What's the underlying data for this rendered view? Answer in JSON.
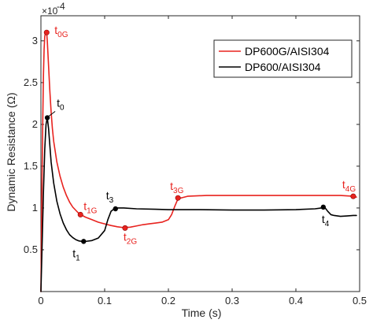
{
  "chart_data": {
    "type": "line",
    "title": "",
    "xlabel": "Time (s)",
    "ylabel": "Dynamic Resistance (Ω)",
    "y_exponent_label": "×10",
    "y_exponent_power": "-4",
    "xlim": [
      0,
      0.5
    ],
    "ylim": [
      0,
      3.3
    ],
    "y_scale_factor": 0.0001,
    "x_ticks": [
      0,
      0.1,
      0.2,
      0.3,
      0.4,
      0.5
    ],
    "x_tick_labels": [
      "0",
      "0.1",
      "0.2",
      "0.3",
      "0.4",
      "0.5"
    ],
    "y_ticks": [
      0.5,
      1,
      1.5,
      2,
      2.5,
      3
    ],
    "y_tick_labels": [
      "0.5",
      "1",
      "1.5",
      "2",
      "2.5",
      "3"
    ],
    "grid": false,
    "legend_position": "top-right",
    "series": [
      {
        "name": "DP600G/AISI304",
        "color": "#e8231f",
        "x": [
          0.0,
          0.001,
          0.002,
          0.003,
          0.004,
          0.005,
          0.006,
          0.007,
          0.008,
          0.009,
          0.01,
          0.012,
          0.014,
          0.016,
          0.018,
          0.02,
          0.025,
          0.03,
          0.035,
          0.04,
          0.045,
          0.05,
          0.055,
          0.06,
          0.07,
          0.08,
          0.09,
          0.1,
          0.11,
          0.12,
          0.13,
          0.14,
          0.15,
          0.16,
          0.17,
          0.18,
          0.19,
          0.2,
          0.205,
          0.21,
          0.215,
          0.23,
          0.26,
          0.3,
          0.35,
          0.4,
          0.44,
          0.47,
          0.49,
          0.495
        ],
        "y": [
          0.0,
          0.8,
          1.5,
          2.1,
          2.6,
          2.9,
          3.05,
          3.1,
          3.12,
          3.1,
          3.0,
          2.7,
          2.4,
          2.15,
          1.95,
          1.8,
          1.55,
          1.38,
          1.25,
          1.15,
          1.07,
          1.01,
          0.97,
          0.93,
          0.89,
          0.86,
          0.83,
          0.81,
          0.79,
          0.775,
          0.765,
          0.77,
          0.785,
          0.8,
          0.81,
          0.82,
          0.83,
          0.86,
          0.92,
          1.02,
          1.11,
          1.14,
          1.15,
          1.15,
          1.15,
          1.15,
          1.15,
          1.15,
          1.14,
          1.13
        ]
      },
      {
        "name": "DP600/AISI304",
        "color": "#000000",
        "x": [
          0.0,
          0.002,
          0.004,
          0.006,
          0.008,
          0.01,
          0.012,
          0.014,
          0.016,
          0.02,
          0.025,
          0.03,
          0.035,
          0.04,
          0.045,
          0.05,
          0.055,
          0.06,
          0.065,
          0.07,
          0.08,
          0.09,
          0.1,
          0.105,
          0.11,
          0.115,
          0.12,
          0.13,
          0.15,
          0.18,
          0.2,
          0.25,
          0.3,
          0.35,
          0.4,
          0.43,
          0.44,
          0.445,
          0.45,
          0.455,
          0.46,
          0.47,
          0.48,
          0.49,
          0.495
        ],
        "y": [
          0.0,
          0.6,
          1.2,
          1.7,
          2.0,
          2.08,
          1.95,
          1.75,
          1.55,
          1.3,
          1.08,
          0.93,
          0.82,
          0.74,
          0.68,
          0.645,
          0.62,
          0.605,
          0.6,
          0.6,
          0.61,
          0.64,
          0.73,
          0.86,
          0.96,
          0.99,
          1.0,
          1.0,
          0.99,
          0.985,
          0.98,
          0.98,
          0.975,
          0.975,
          0.98,
          0.99,
          1.0,
          1.01,
          0.96,
          0.92,
          0.91,
          0.9,
          0.905,
          0.91,
          0.91
        ]
      }
    ],
    "markers": [
      {
        "id": "t0G",
        "series": 0,
        "x": 0.009,
        "y": 3.1,
        "label": "t",
        "sub": "0G",
        "color": "#e8231f",
        "label_color": "#e8231f"
      },
      {
        "id": "t1G",
        "series": 0,
        "x": 0.062,
        "y": 0.92,
        "label": "t",
        "sub": "1G",
        "color": "#e8231f",
        "label_color": "#e8231f"
      },
      {
        "id": "t2G",
        "series": 0,
        "x": 0.132,
        "y": 0.76,
        "label": "t",
        "sub": "2G",
        "color": "#e8231f",
        "label_color": "#e8231f"
      },
      {
        "id": "t3G",
        "series": 0,
        "x": 0.215,
        "y": 1.12,
        "label": "t",
        "sub": "3G",
        "color": "#e8231f",
        "label_color": "#e8231f"
      },
      {
        "id": "t4G",
        "series": 0,
        "x": 0.49,
        "y": 1.14,
        "label": "t",
        "sub": "4G",
        "color": "#e8231f",
        "label_color": "#e8231f"
      },
      {
        "id": "t0",
        "series": 1,
        "x": 0.01,
        "y": 2.08,
        "label": "t",
        "sub": "0",
        "color": "#000000",
        "label_color": "#000000"
      },
      {
        "id": "t1",
        "series": 1,
        "x": 0.067,
        "y": 0.6,
        "label": "t",
        "sub": "1",
        "color": "#000000",
        "label_color": "#000000"
      },
      {
        "id": "t3",
        "series": 1,
        "x": 0.117,
        "y": 0.99,
        "label": "t",
        "sub": "3",
        "color": "#000000",
        "label_color": "#000000"
      },
      {
        "id": "t4",
        "series": 1,
        "x": 0.443,
        "y": 1.01,
        "label": "t",
        "sub": "4",
        "color": "#000000",
        "label_color": "#000000"
      }
    ]
  }
}
